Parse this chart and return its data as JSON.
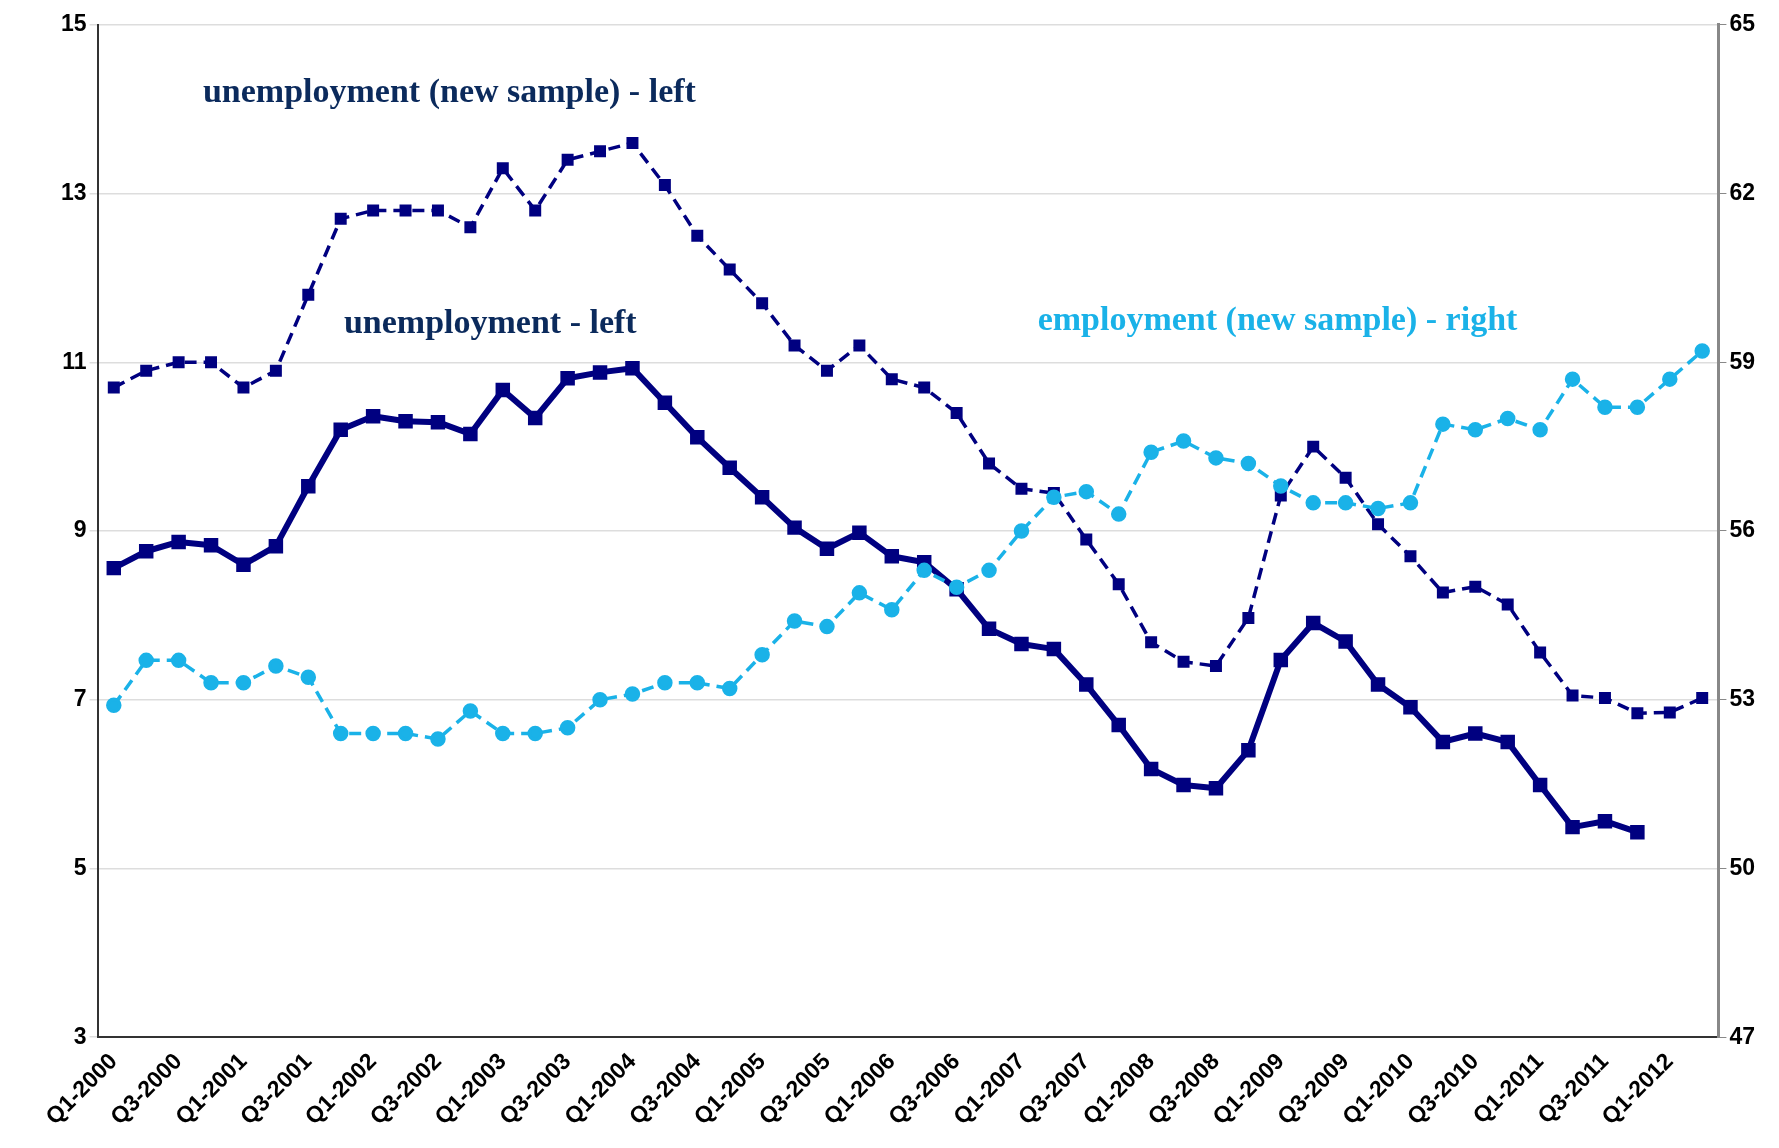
{
  "chart_data": {
    "type": "line",
    "categories": [
      "Q1-2000",
      null,
      "Q3-2000",
      null,
      "Q1-2001",
      null,
      "Q3-2001",
      null,
      "Q1-2002",
      null,
      "Q3-2002",
      null,
      "Q1-2003",
      null,
      "Q3-2003",
      null,
      "Q1-2004",
      null,
      "Q3-2004",
      null,
      "Q1-2005",
      null,
      "Q3-2005",
      null,
      "Q1-2006",
      null,
      "Q3-2006",
      null,
      "Q1-2007",
      null,
      "Q3-2007",
      null,
      "Q1-2008",
      null,
      "Q3-2008",
      null,
      "Q1-2009",
      null,
      "Q3-2009",
      null,
      "Q1-2010",
      null,
      "Q3-2010",
      null,
      "Q1-2011",
      null,
      "Q3-2011",
      null,
      "Q1-2012",
      null
    ],
    "series": [
      {
        "name": "unemployment (new sample) - left",
        "color": "#000080",
        "marker": "square",
        "line_style": "dashed",
        "values": [
          10.7,
          10.9,
          11.0,
          11.0,
          10.7,
          10.9,
          11.8,
          12.7,
          12.8,
          12.8,
          12.8,
          12.6,
          13.3,
          12.8,
          13.4,
          13.5,
          13.6,
          13.1,
          12.5,
          12.1,
          11.7,
          11.2,
          10.9,
          11.2,
          10.8,
          10.7,
          10.4,
          9.8,
          9.5,
          9.45,
          8.9,
          8.37,
          7.68,
          7.45,
          7.4,
          7.97,
          9.42,
          10.0,
          9.63,
          9.08,
          8.7,
          8.27,
          8.34,
          8.13,
          7.56,
          7.05,
          7.02,
          6.84,
          6.85,
          7.02
        ]
      },
      {
        "name": "unemployment - left",
        "color": "#000080",
        "marker": "square",
        "line_style": "solid",
        "values": [
          8.56,
          8.76,
          8.87,
          8.83,
          8.6,
          8.82,
          9.53,
          10.2,
          10.36,
          10.3,
          10.29,
          10.15,
          10.67,
          10.34,
          10.81,
          10.88,
          10.93,
          10.52,
          10.11,
          9.75,
          9.4,
          9.04,
          8.79,
          8.98,
          8.7,
          8.63,
          8.31,
          7.84,
          7.66,
          7.6,
          7.18,
          6.7,
          6.18,
          5.99,
          5.95,
          6.4,
          7.47,
          7.91,
          7.69,
          7.18,
          6.91,
          6.5,
          6.6,
          6.5,
          5.99,
          5.49,
          5.56,
          5.43,
          null,
          null
        ]
      },
      {
        "name": "employment (new sample) - right",
        "color": "#1ab2e8",
        "marker": "circle",
        "line_style": "dashed",
        "axis": "y2",
        "values": [
          52.9,
          53.7,
          53.7,
          53.3,
          53.3,
          53.6,
          53.4,
          52.4,
          52.4,
          52.4,
          52.3,
          52.8,
          52.4,
          52.4,
          52.5,
          53.0,
          53.1,
          53.3,
          53.3,
          53.2,
          53.8,
          54.4,
          54.3,
          54.9,
          54.6,
          55.3,
          55.0,
          55.3,
          56.0,
          56.6,
          56.7,
          56.3,
          57.4,
          57.6,
          57.3,
          57.2,
          56.8,
          56.5,
          56.5,
          56.4,
          56.5,
          57.9,
          57.8,
          58.0,
          57.8,
          58.7,
          58.2,
          58.2,
          58.7,
          59.2
        ]
      }
    ],
    "ylim": [
      3,
      15
    ],
    "yticks": [
      3,
      5,
      7,
      9,
      11,
      13,
      15
    ],
    "y2lim": [
      47,
      65
    ],
    "y2ticks": [
      47,
      50,
      53,
      56,
      59,
      62,
      65
    ],
    "grid": "y",
    "legend": false
  }
}
